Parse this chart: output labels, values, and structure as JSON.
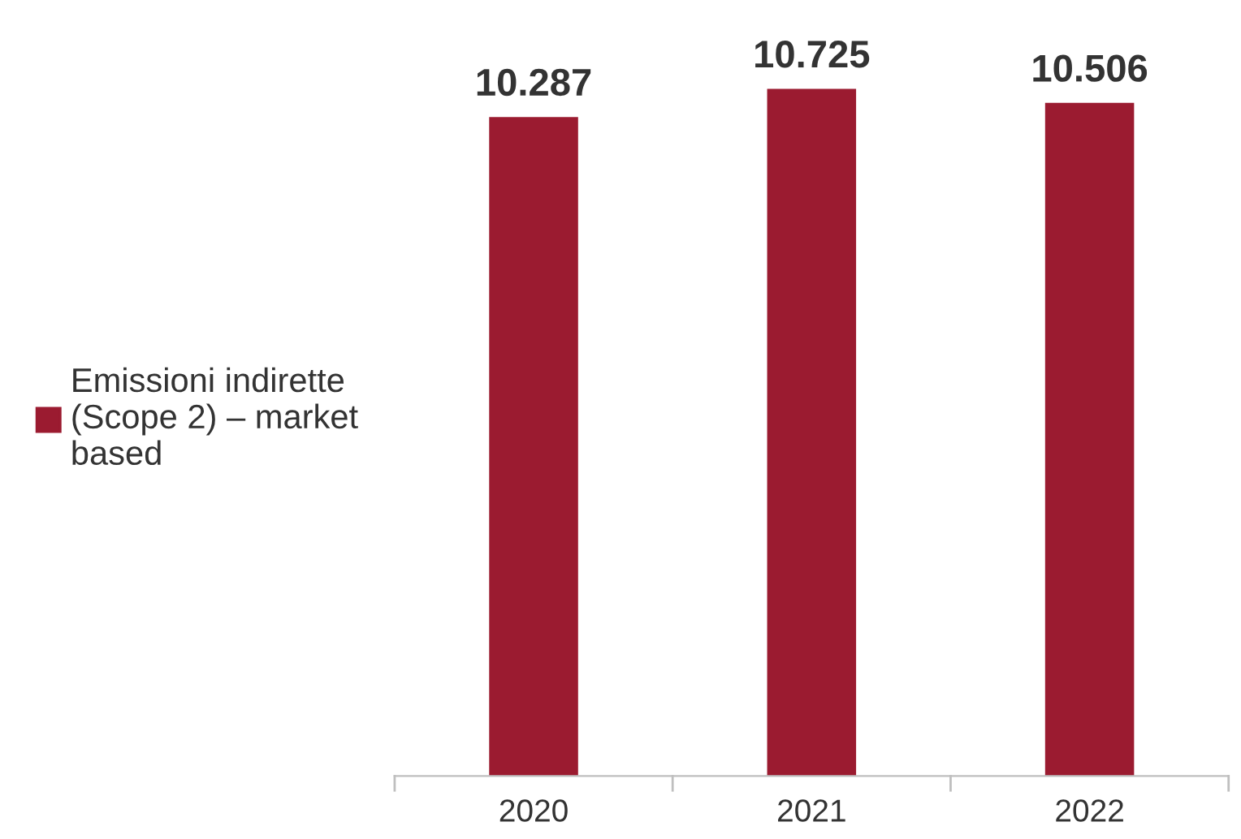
{
  "chart_data": {
    "type": "bar",
    "categories": [
      "2020",
      "2021",
      "2022"
    ],
    "series": [
      {
        "name": "Emissioni indirette (Scope 2) – market based",
        "color": "#9b1b30",
        "values": [
          10287,
          10725,
          10506
        ],
        "value_labels": [
          "10.287",
          "10.725",
          "10.506"
        ]
      }
    ],
    "legend": "left",
    "grid": false
  }
}
